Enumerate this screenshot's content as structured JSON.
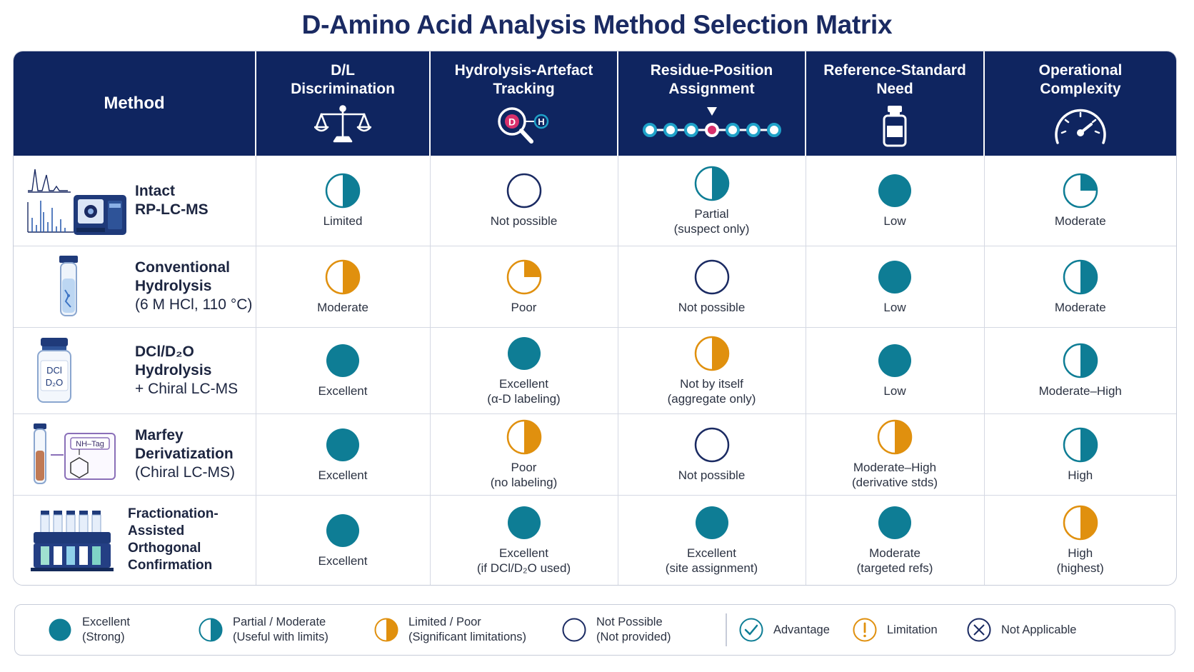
{
  "title": "D-Amino Acid Analysis Method Selection Matrix",
  "colors": {
    "header_bg": "#0f2560",
    "teal": "#0e7d95",
    "orange": "#e0900e",
    "navy": "#1a2a62",
    "pink": "#d8306c"
  },
  "headers": [
    {
      "label": "Method",
      "icon": ""
    },
    {
      "label": "D/L\nDiscrimination",
      "icon": "balance-scale-icon"
    },
    {
      "label": "Hydrolysis-Artefact\nTracking",
      "icon": "magnifier-icon",
      "icon_text_d": "D",
      "icon_text_h": "H"
    },
    {
      "label": "Residue-Position\nAssignment",
      "icon": "residue-chain-icon"
    },
    {
      "label": "Reference-Standard\nNeed",
      "icon": "vial-icon"
    },
    {
      "label": "Operational\nComplexity",
      "icon": "gauge-icon"
    }
  ],
  "rows": [
    {
      "method": {
        "name_bold": [
          "Intact",
          "RP-LC-MS"
        ],
        "name_normal": [],
        "icon": "lcms-instrument-icon"
      },
      "cells": [
        {
          "rating": "partial-teal",
          "label": "Limited"
        },
        {
          "rating": "empty",
          "label": "Not possible"
        },
        {
          "rating": "partial-teal",
          "label": "Partial\n(suspect only)"
        },
        {
          "rating": "full",
          "label": "Low"
        },
        {
          "rating": "quarter-teal",
          "label": "Moderate"
        }
      ]
    },
    {
      "method": {
        "name_bold": [
          "Conventional",
          "Hydrolysis"
        ],
        "name_normal": [
          "(6 M HCl, 110 °C)"
        ],
        "icon": "tube-icon"
      },
      "cells": [
        {
          "rating": "half-orange",
          "label": "Moderate"
        },
        {
          "rating": "quarter-orange",
          "label": "Poor"
        },
        {
          "rating": "empty",
          "label": "Not possible"
        },
        {
          "rating": "full",
          "label": "Low"
        },
        {
          "rating": "partial-teal",
          "label": "Moderate"
        }
      ]
    },
    {
      "method": {
        "name_bold": [
          "DCl/D₂O",
          "Hydrolysis"
        ],
        "name_normal": [
          "+ Chiral LC-MS"
        ],
        "icon": "dcl-bottle-icon",
        "icon_label_top": "DCl",
        "icon_label_bottom": "D₂O"
      },
      "cells": [
        {
          "rating": "full",
          "label": "Excellent"
        },
        {
          "rating": "full",
          "label": "Excellent\n(α-D labeling)"
        },
        {
          "rating": "half-orange",
          "label": "Not by itself\n(aggregate only)"
        },
        {
          "rating": "full",
          "label": "Low"
        },
        {
          "rating": "partial-teal",
          "label": "Moderate–High"
        }
      ]
    },
    {
      "method": {
        "name_bold": [
          "Marfey",
          "Derivatization"
        ],
        "name_normal": [
          "(Chiral LC-MS)"
        ],
        "icon": "marfey-derivatization-icon",
        "icon_label": "NH–Tag"
      },
      "cells": [
        {
          "rating": "full",
          "label": "Excellent"
        },
        {
          "rating": "half-orange",
          "label": "Poor\n(no labeling)"
        },
        {
          "rating": "empty",
          "label": "Not possible"
        },
        {
          "rating": "half-orange",
          "label": "Moderate–High\n(derivative stds)"
        },
        {
          "rating": "partial-teal",
          "label": "High"
        }
      ]
    },
    {
      "method": {
        "name_bold": [
          "Fractionation-Assisted",
          "Orthogonal",
          "Confirmation"
        ],
        "name_normal": [],
        "icon": "tube-rack-icon"
      },
      "cells": [
        {
          "rating": "full",
          "label": "Excellent"
        },
        {
          "rating": "full",
          "label": "Excellent\n(if DCl/D₂O used)"
        },
        {
          "rating": "full",
          "label": "Excellent\n(site assignment)"
        },
        {
          "rating": "full",
          "label": "Moderate\n(targeted refs)"
        },
        {
          "rating": "half-orange",
          "label": "High\n(highest)"
        }
      ]
    }
  ],
  "legend": [
    {
      "symbol": "full",
      "label": "Excellent\n(Strong)"
    },
    {
      "symbol": "partial-teal",
      "label": "Partial / Moderate\n(Useful with limits)"
    },
    {
      "symbol": "half-orange",
      "label": "Limited / Poor\n(Significant limitations)"
    },
    {
      "symbol": "empty",
      "label": "Not Possible\n(Not provided)"
    },
    {
      "symbol": "check-icon",
      "label": "Advantage"
    },
    {
      "symbol": "exclamation-icon",
      "label": "Limitation"
    },
    {
      "symbol": "cross-icon",
      "label": "Not Applicable"
    }
  ]
}
